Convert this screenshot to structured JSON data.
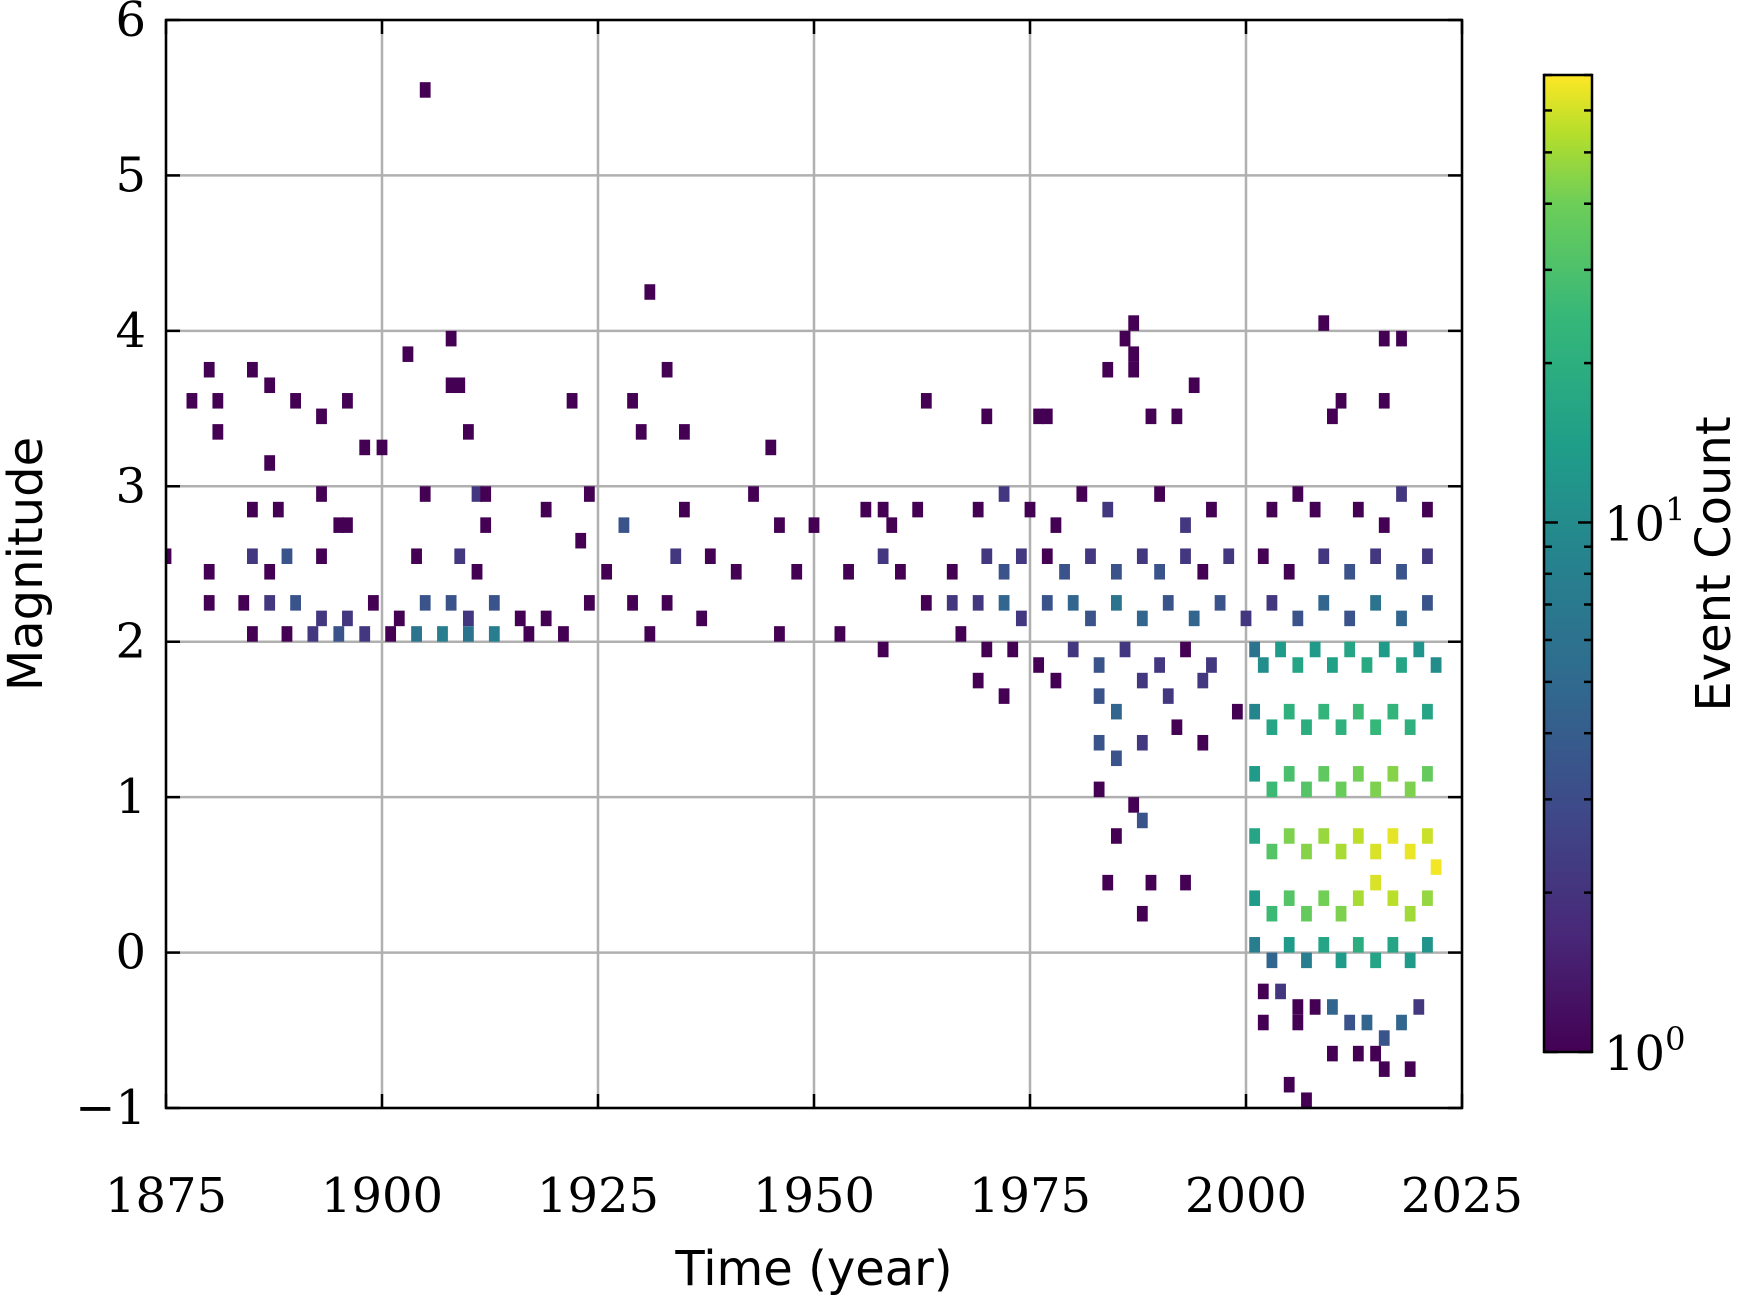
{
  "chart_data": {
    "type": "heatmap",
    "title": "",
    "xlabel": "Time (year)",
    "ylabel": "Magnitude",
    "xlim": [
      1875,
      2025
    ],
    "ylim": [
      -1,
      6
    ],
    "x_ticks": [
      1875,
      1900,
      1925,
      1950,
      1975,
      2000,
      2025
    ],
    "x_tick_labels": [
      "1875",
      "1900",
      "1925",
      "1950",
      "1975",
      "2000",
      "2025"
    ],
    "y_ticks": [
      -1,
      0,
      1,
      2,
      3,
      4,
      5,
      6
    ],
    "y_tick_labels": [
      "−1",
      "0",
      "1",
      "2",
      "3",
      "4",
      "5",
      "6"
    ],
    "grid": true,
    "bin_width_years": 1.25,
    "bin_height_magnitude": 0.1,
    "colormap": "viridis",
    "color_scale": "log",
    "colorbar": {
      "label": "Event Count",
      "min": 1,
      "max": 70,
      "ticks": [
        1,
        10
      ],
      "tick_labels": [
        {
          "base": "10",
          "exp": "0"
        },
        {
          "base": "10",
          "exp": "1"
        }
      ],
      "location": "right"
    },
    "cells": [
      [
        1905,
        5.55,
        1
      ],
      [
        1931,
        4.25,
        1
      ],
      [
        1908,
        3.95,
        1
      ],
      [
        1987,
        4.05,
        1
      ],
      [
        1986,
        3.95,
        1
      ],
      [
        2009,
        4.05,
        1
      ],
      [
        2016,
        3.95,
        1
      ],
      [
        2018,
        3.95,
        1
      ],
      [
        1880,
        3.75,
        1
      ],
      [
        1885,
        3.75,
        1
      ],
      [
        1903,
        3.85,
        1
      ],
      [
        1933,
        3.75,
        1
      ],
      [
        1984,
        3.75,
        1
      ],
      [
        1987,
        3.75,
        1
      ],
      [
        1987,
        3.85,
        1
      ],
      [
        1878,
        3.55,
        1
      ],
      [
        1881,
        3.55,
        1
      ],
      [
        1887,
        3.65,
        1
      ],
      [
        1890,
        3.55,
        1
      ],
      [
        1908,
        3.65,
        1
      ],
      [
        1909,
        3.65,
        1
      ],
      [
        1922,
        3.55,
        1
      ],
      [
        1929,
        3.55,
        1
      ],
      [
        1963,
        3.55,
        1
      ],
      [
        1994,
        3.65,
        1
      ],
      [
        2011,
        3.55,
        1
      ],
      [
        2016,
        3.55,
        1
      ],
      [
        1881,
        3.35,
        1
      ],
      [
        1893,
        3.45,
        1
      ],
      [
        1896,
        3.55,
        1
      ],
      [
        1887,
        3.15,
        1
      ],
      [
        1898,
        3.25,
        1
      ],
      [
        1900,
        3.25,
        1
      ],
      [
        1910,
        3.35,
        1
      ],
      [
        1930,
        3.35,
        1
      ],
      [
        1935,
        3.35,
        1
      ],
      [
        1945,
        3.25,
        1
      ],
      [
        1970,
        3.45,
        1
      ],
      [
        1976,
        3.45,
        1
      ],
      [
        1977,
        3.45,
        1
      ],
      [
        1989,
        3.45,
        1
      ],
      [
        1992,
        3.45,
        1
      ],
      [
        2010,
        3.45,
        1
      ],
      [
        1893,
        2.95,
        1
      ],
      [
        1885,
        2.85,
        1
      ],
      [
        1888,
        2.85,
        1
      ],
      [
        1895,
        2.75,
        1
      ],
      [
        1896,
        2.75,
        1
      ],
      [
        1905,
        2.95,
        1
      ],
      [
        1911,
        2.95,
        2
      ],
      [
        1912,
        2.95,
        1
      ],
      [
        1912,
        2.75,
        1
      ],
      [
        1919,
        2.85,
        1
      ],
      [
        1924,
        2.95,
        1
      ],
      [
        1928,
        2.75,
        3
      ],
      [
        1935,
        2.85,
        1
      ],
      [
        1943,
        2.95,
        1
      ],
      [
        1946,
        2.75,
        1
      ],
      [
        1950,
        2.75,
        1
      ],
      [
        1956,
        2.85,
        1
      ],
      [
        1958,
        2.85,
        1
      ],
      [
        1959,
        2.75,
        1
      ],
      [
        1962,
        2.85,
        1
      ],
      [
        1969,
        2.85,
        1
      ],
      [
        1972,
        2.95,
        2
      ],
      [
        1975,
        2.85,
        1
      ],
      [
        1978,
        2.75,
        1
      ],
      [
        1981,
        2.95,
        1
      ],
      [
        1984,
        2.85,
        2
      ],
      [
        1990,
        2.95,
        1
      ],
      [
        1993,
        2.75,
        2
      ],
      [
        1996,
        2.85,
        1
      ],
      [
        2003,
        2.85,
        1
      ],
      [
        2006,
        2.95,
        1
      ],
      [
        2008,
        2.85,
        1
      ],
      [
        2013,
        2.85,
        1
      ],
      [
        2016,
        2.75,
        1
      ],
      [
        2018,
        2.95,
        2
      ],
      [
        2021,
        2.85,
        1
      ],
      [
        1875,
        2.55,
        1
      ],
      [
        1880,
        2.45,
        1
      ],
      [
        1885,
        2.55,
        2
      ],
      [
        1887,
        2.45,
        1
      ],
      [
        1889,
        2.55,
        3
      ],
      [
        1893,
        2.55,
        1
      ],
      [
        1904,
        2.55,
        1
      ],
      [
        1909,
        2.55,
        2
      ],
      [
        1911,
        2.45,
        1
      ],
      [
        1923,
        2.65,
        1
      ],
      [
        1926,
        2.45,
        1
      ],
      [
        1934,
        2.55,
        2
      ],
      [
        1938,
        2.55,
        1
      ],
      [
        1941,
        2.45,
        1
      ],
      [
        1948,
        2.45,
        1
      ],
      [
        1954,
        2.45,
        1
      ],
      [
        1958,
        2.55,
        2
      ],
      [
        1960,
        2.45,
        1
      ],
      [
        1966,
        2.45,
        1
      ],
      [
        1970,
        2.55,
        2
      ],
      [
        1972,
        2.45,
        3
      ],
      [
        1974,
        2.55,
        2
      ],
      [
        1977,
        2.55,
        1
      ],
      [
        1979,
        2.45,
        3
      ],
      [
        1982,
        2.55,
        2
      ],
      [
        1985,
        2.45,
        3
      ],
      [
        1988,
        2.55,
        2
      ],
      [
        1990,
        2.45,
        3
      ],
      [
        1993,
        2.55,
        2
      ],
      [
        1995,
        2.45,
        1
      ],
      [
        1998,
        2.55,
        2
      ],
      [
        2002,
        2.55,
        1
      ],
      [
        2005,
        2.45,
        1
      ],
      [
        2009,
        2.55,
        2
      ],
      [
        2012,
        2.45,
        3
      ],
      [
        2015,
        2.55,
        2
      ],
      [
        2018,
        2.45,
        3
      ],
      [
        2021,
        2.55,
        2
      ],
      [
        1880,
        2.25,
        1
      ],
      [
        1884,
        2.25,
        1
      ],
      [
        1887,
        2.25,
        2
      ],
      [
        1890,
        2.25,
        3
      ],
      [
        1893,
        2.15,
        2
      ],
      [
        1896,
        2.15,
        2
      ],
      [
        1899,
        2.25,
        1
      ],
      [
        1902,
        2.15,
        1
      ],
      [
        1905,
        2.25,
        3
      ],
      [
        1908,
        2.25,
        3
      ],
      [
        1910,
        2.15,
        2
      ],
      [
        1913,
        2.25,
        3
      ],
      [
        1916,
        2.15,
        1
      ],
      [
        1919,
        2.15,
        1
      ],
      [
        1924,
        2.25,
        1
      ],
      [
        1929,
        2.25,
        1
      ],
      [
        1933,
        2.25,
        1
      ],
      [
        1937,
        2.15,
        1
      ],
      [
        1963,
        2.25,
        1
      ],
      [
        1966,
        2.25,
        2
      ],
      [
        1969,
        2.25,
        2
      ],
      [
        1972,
        2.25,
        4
      ],
      [
        1974,
        2.15,
        2
      ],
      [
        1977,
        2.25,
        3
      ],
      [
        1980,
        2.25,
        4
      ],
      [
        1982,
        2.15,
        3
      ],
      [
        1985,
        2.25,
        5
      ],
      [
        1988,
        2.15,
        4
      ],
      [
        1991,
        2.25,
        3
      ],
      [
        1994,
        2.15,
        4
      ],
      [
        1997,
        2.25,
        3
      ],
      [
        2000,
        2.15,
        2
      ],
      [
        2003,
        2.25,
        2
      ],
      [
        2006,
        2.15,
        3
      ],
      [
        2009,
        2.25,
        4
      ],
      [
        2012,
        2.15,
        3
      ],
      [
        2015,
        2.25,
        5
      ],
      [
        2018,
        2.15,
        4
      ],
      [
        2021,
        2.25,
        3
      ],
      [
        1885,
        2.05,
        1
      ],
      [
        1889,
        2.05,
        1
      ],
      [
        1892,
        2.05,
        2
      ],
      [
        1895,
        2.05,
        3
      ],
      [
        1898,
        2.05,
        2
      ],
      [
        1901,
        2.05,
        1
      ],
      [
        1904,
        2.05,
        5
      ],
      [
        1907,
        2.05,
        6
      ],
      [
        1910,
        2.05,
        5
      ],
      [
        1913,
        2.05,
        6
      ],
      [
        1917,
        2.05,
        1
      ],
      [
        1921,
        2.05,
        1
      ],
      [
        1931,
        2.05,
        1
      ],
      [
        1946,
        2.05,
        1
      ],
      [
        1953,
        2.05,
        1
      ],
      [
        1958,
        1.95,
        1
      ],
      [
        1967,
        2.05,
        1
      ],
      [
        1970,
        1.95,
        1
      ],
      [
        1973,
        1.95,
        1
      ],
      [
        1976,
        1.85,
        1
      ],
      [
        1980,
        1.95,
        2
      ],
      [
        1983,
        1.85,
        3
      ],
      [
        1986,
        1.95,
        2
      ],
      [
        1990,
        1.85,
        2
      ],
      [
        1993,
        1.95,
        1
      ],
      [
        1996,
        1.85,
        2
      ],
      [
        1969,
        1.75,
        1
      ],
      [
        1972,
        1.65,
        1
      ],
      [
        1978,
        1.75,
        1
      ],
      [
        1983,
        1.65,
        3
      ],
      [
        1985,
        1.55,
        4
      ],
      [
        1988,
        1.75,
        2
      ],
      [
        1991,
        1.65,
        2
      ],
      [
        1995,
        1.75,
        2
      ],
      [
        1999,
        1.55,
        1
      ],
      [
        1983,
        1.35,
        3
      ],
      [
        1985,
        1.25,
        3
      ],
      [
        1988,
        1.35,
        2
      ],
      [
        1992,
        1.45,
        1
      ],
      [
        1995,
        1.35,
        1
      ],
      [
        1983,
        1.05,
        1
      ],
      [
        1987,
        0.95,
        1
      ],
      [
        1988,
        0.85,
        3
      ],
      [
        1985,
        0.75,
        1
      ],
      [
        1984,
        0.45,
        1
      ],
      [
        1989,
        0.45,
        1
      ],
      [
        1993,
        0.45,
        1
      ],
      [
        1988,
        0.25,
        1
      ],
      [
        2001,
        1.95,
        5
      ],
      [
        2002,
        1.85,
        8
      ],
      [
        2004,
        1.95,
        10
      ],
      [
        2006,
        1.85,
        12
      ],
      [
        2008,
        1.95,
        10
      ],
      [
        2010,
        1.85,
        11
      ],
      [
        2012,
        1.95,
        12
      ],
      [
        2014,
        1.85,
        13
      ],
      [
        2016,
        1.95,
        10
      ],
      [
        2018,
        1.85,
        12
      ],
      [
        2020,
        1.95,
        9
      ],
      [
        2022,
        1.85,
        8
      ],
      [
        2001,
        1.55,
        7
      ],
      [
        2003,
        1.45,
        12
      ],
      [
        2005,
        1.55,
        15
      ],
      [
        2007,
        1.45,
        14
      ],
      [
        2009,
        1.55,
        16
      ],
      [
        2011,
        1.45,
        15
      ],
      [
        2013,
        1.55,
        18
      ],
      [
        2015,
        1.45,
        17
      ],
      [
        2017,
        1.55,
        16
      ],
      [
        2019,
        1.45,
        15
      ],
      [
        2021,
        1.55,
        12
      ],
      [
        2001,
        1.15,
        10
      ],
      [
        2003,
        1.05,
        18
      ],
      [
        2005,
        1.15,
        20
      ],
      [
        2007,
        1.05,
        22
      ],
      [
        2009,
        1.15,
        24
      ],
      [
        2011,
        1.05,
        26
      ],
      [
        2013,
        1.15,
        28
      ],
      [
        2015,
        1.05,
        30
      ],
      [
        2017,
        1.15,
        32
      ],
      [
        2019,
        1.05,
        30
      ],
      [
        2021,
        1.15,
        25
      ],
      [
        2001,
        0.75,
        12
      ],
      [
        2003,
        0.65,
        22
      ],
      [
        2005,
        0.75,
        30
      ],
      [
        2007,
        0.65,
        32
      ],
      [
        2009,
        0.75,
        36
      ],
      [
        2011,
        0.65,
        40
      ],
      [
        2013,
        0.75,
        46
      ],
      [
        2015,
        0.65,
        55
      ],
      [
        2017,
        0.75,
        60
      ],
      [
        2019,
        0.65,
        62
      ],
      [
        2021,
        0.75,
        50
      ],
      [
        2022,
        0.55,
        65
      ],
      [
        2001,
        0.35,
        10
      ],
      [
        2003,
        0.25,
        18
      ],
      [
        2005,
        0.35,
        22
      ],
      [
        2007,
        0.25,
        25
      ],
      [
        2009,
        0.35,
        28
      ],
      [
        2011,
        0.25,
        30
      ],
      [
        2013,
        0.35,
        40
      ],
      [
        2015,
        0.45,
        55
      ],
      [
        2017,
        0.35,
        45
      ],
      [
        2019,
        0.25,
        38
      ],
      [
        2021,
        0.35,
        35
      ],
      [
        2001,
        0.05,
        6
      ],
      [
        2003,
        -0.05,
        4
      ],
      [
        2005,
        0.05,
        10
      ],
      [
        2007,
        -0.05,
        6
      ],
      [
        2009,
        0.05,
        12
      ],
      [
        2011,
        -0.05,
        10
      ],
      [
        2013,
        0.05,
        14
      ],
      [
        2015,
        -0.05,
        12
      ],
      [
        2017,
        0.05,
        12
      ],
      [
        2019,
        -0.05,
        10
      ],
      [
        2021,
        0.05,
        9
      ],
      [
        2002,
        -0.25,
        1
      ],
      [
        2004,
        -0.25,
        2
      ],
      [
        2006,
        -0.35,
        1
      ],
      [
        2008,
        -0.35,
        1
      ],
      [
        2010,
        -0.35,
        4
      ],
      [
        2012,
        -0.45,
        3
      ],
      [
        2014,
        -0.45,
        4
      ],
      [
        2016,
        -0.55,
        3
      ],
      [
        2018,
        -0.45,
        4
      ],
      [
        2020,
        -0.35,
        2
      ],
      [
        2002,
        -0.45,
        1
      ],
      [
        2006,
        -0.45,
        1
      ],
      [
        2010,
        -0.65,
        1
      ],
      [
        2013,
        -0.65,
        1
      ],
      [
        2015,
        -0.65,
        1
      ],
      [
        2016,
        -0.75,
        1
      ],
      [
        2019,
        -0.75,
        1
      ],
      [
        2005,
        -0.85,
        1
      ],
      [
        2007,
        -0.95,
        1
      ]
    ]
  }
}
